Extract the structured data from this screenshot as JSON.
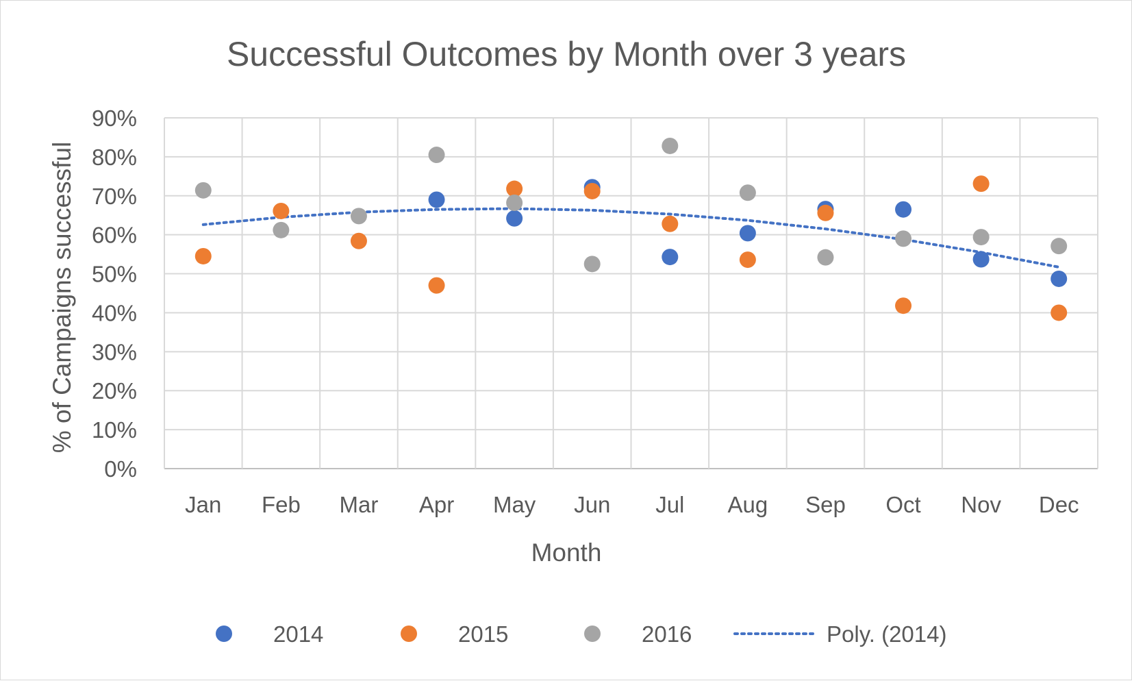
{
  "chart_data": {
    "type": "scatter",
    "title": "Successful Outcomes by Month over 3 years",
    "xlabel": "Month",
    "ylabel": "% of Campaigns successful",
    "categories": [
      "Jan",
      "Feb",
      "Mar",
      "Apr",
      "May",
      "Jun",
      "Jul",
      "Aug",
      "Sep",
      "Oct",
      "Nov",
      "Dec"
    ],
    "yticks": [
      "0%",
      "10%",
      "20%",
      "30%",
      "40%",
      "50%",
      "60%",
      "70%",
      "80%",
      "90%"
    ],
    "ylim": [
      0,
      0.9
    ],
    "grid": true,
    "legend_position": "bottom",
    "series": [
      {
        "name": "2014",
        "color": "#4472c4",
        "values": [
          null,
          null,
          null,
          0.69,
          0.642,
          0.722,
          0.543,
          0.604,
          0.666,
          0.665,
          0.537,
          0.487
        ]
      },
      {
        "name": "2015",
        "color": "#ed7d31",
        "values": [
          0.545,
          0.661,
          0.584,
          0.47,
          0.718,
          0.712,
          0.628,
          0.536,
          0.656,
          0.418,
          0.731,
          0.4
        ]
      },
      {
        "name": "2016",
        "color": "#a5a5a5",
        "values": [
          0.714,
          0.612,
          0.648,
          0.805,
          0.682,
          0.525,
          0.828,
          0.708,
          0.542,
          0.59,
          0.594,
          0.571
        ]
      }
    ],
    "trendline": {
      "name": "Poly. (2014)",
      "color": "#4472c4",
      "style": "dotted",
      "values": [
        0.626,
        0.645,
        0.658,
        0.665,
        0.667,
        0.663,
        0.653,
        0.637,
        0.615,
        0.588,
        0.555,
        0.517
      ]
    }
  }
}
